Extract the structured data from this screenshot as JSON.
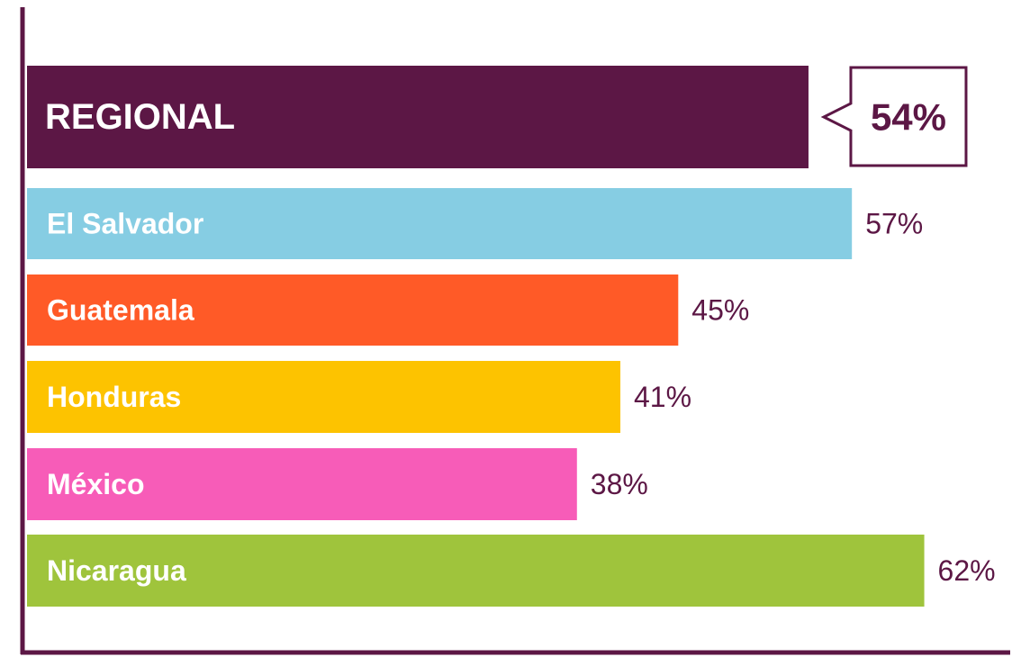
{
  "chart_data": {
    "type": "bar",
    "orientation": "horizontal",
    "categories": [
      "REGIONAL",
      "El Salvador",
      "Guatemala",
      "Honduras",
      "México",
      "Nicaragua"
    ],
    "values": [
      54,
      57,
      45,
      41,
      38,
      62
    ],
    "value_labels": [
      "54%",
      "57%",
      "45%",
      "41%",
      "38%",
      "62%"
    ],
    "colors": [
      "#5c1745",
      "#86cde3",
      "#ff5a27",
      "#fdc300",
      "#f75cb8",
      "#9fc43c"
    ],
    "xlim": [
      0,
      68
    ]
  }
}
